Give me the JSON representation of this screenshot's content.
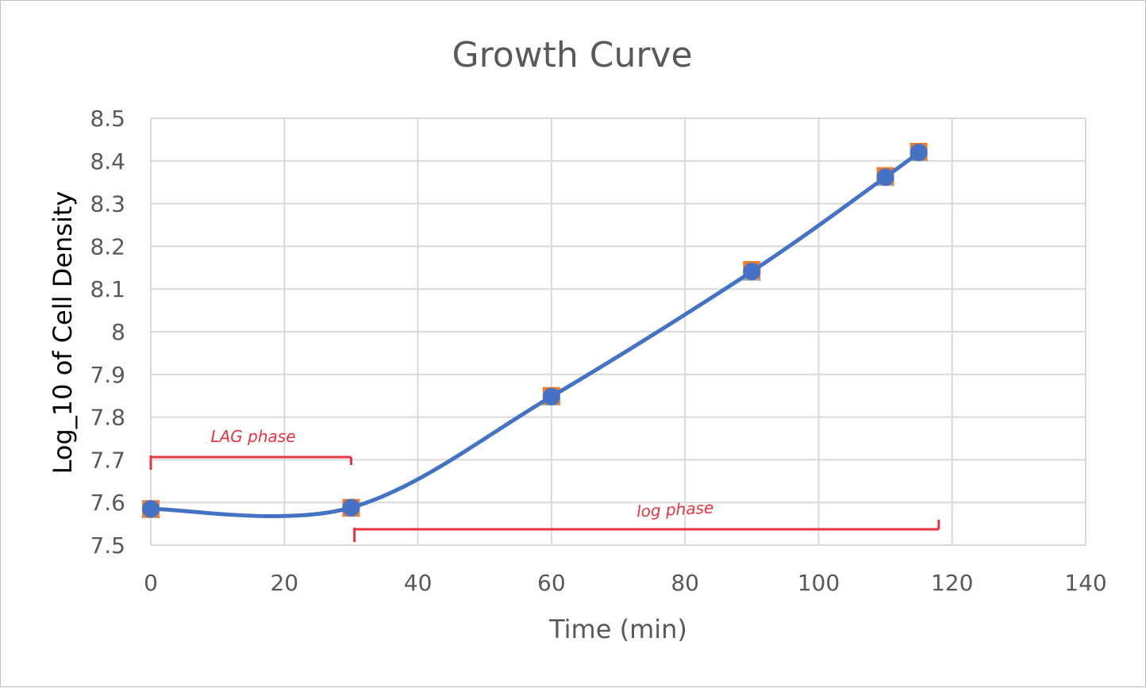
{
  "chart_data": {
    "type": "line",
    "title": "Growth Curve",
    "xlabel": "Time (min)",
    "ylabel": "Log_10 of Cell Density",
    "xlim": [
      0,
      140
    ],
    "ylim": [
      7.5,
      8.5
    ],
    "x_ticks": [
      "0",
      "20",
      "40",
      "60",
      "80",
      "100",
      "120",
      "140"
    ],
    "y_ticks": [
      "7.5",
      "7.6",
      "7.7",
      "7.8",
      "7.9",
      "8",
      "8.1",
      "8.2",
      "8.3",
      "8.4",
      "8.5"
    ],
    "grid": true,
    "legend": "none",
    "series": [
      {
        "x": [
          0,
          30,
          60,
          90,
          110,
          115
        ],
        "values": [
          7.585,
          7.588,
          7.848,
          8.141,
          8.362,
          8.42
        ],
        "color": "#4472c4",
        "marker": "circle",
        "smooth": true
      },
      {
        "x": [
          0,
          30,
          60,
          90,
          110,
          115
        ],
        "values": [
          7.585,
          7.588,
          7.85,
          8.145,
          8.365,
          8.422
        ],
        "color": "#ed7d31",
        "marker": "square"
      },
      {
        "x": [
          0,
          30,
          60,
          90,
          110,
          115
        ],
        "values": [
          7.582,
          7.585,
          7.846,
          8.138,
          8.36,
          8.418
        ],
        "color": "#a5a5a5",
        "marker": "triangle"
      }
    ],
    "annotations": [
      {
        "text": "LAG phase",
        "x_range": [
          0,
          30
        ],
        "y": 7.7,
        "color": "#e8333f"
      },
      {
        "text": "log phase",
        "x_range": [
          30.5,
          118
        ],
        "y": 7.53,
        "color": "#e8333f"
      }
    ]
  }
}
